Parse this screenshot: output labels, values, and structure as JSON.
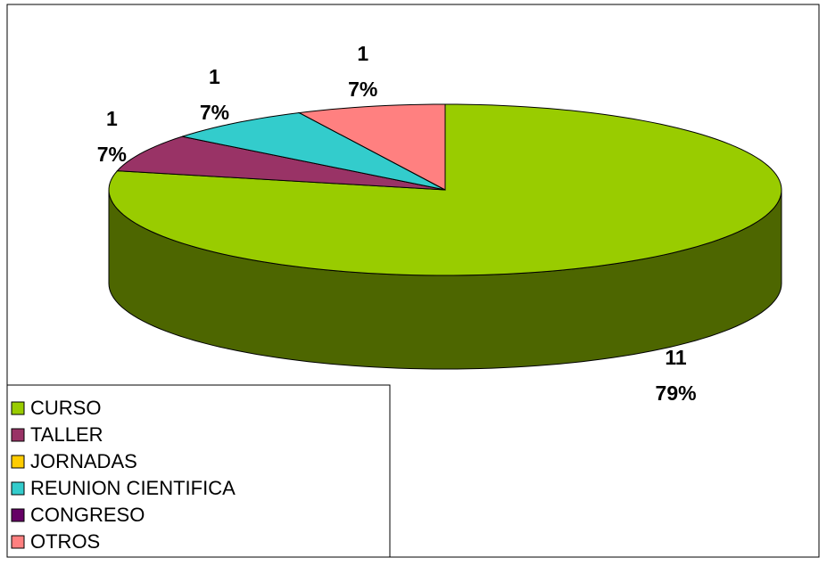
{
  "chart_data": {
    "type": "pie3d",
    "categories": [
      "CURSO",
      "TALLER",
      "JORNADAS",
      "REUNION CIENTIFICA",
      "CONGRESO",
      "OTROS"
    ],
    "values": [
      11,
      1,
      0,
      1,
      0,
      1
    ],
    "percent_labels": [
      "79%",
      "7%",
      null,
      "7%",
      null,
      "7%"
    ],
    "colors": [
      "#99cc00",
      "#993366",
      "#ffcc00",
      "#33cccc",
      "#660066",
      "#ff8080"
    ],
    "legend": "bottom-left"
  }
}
